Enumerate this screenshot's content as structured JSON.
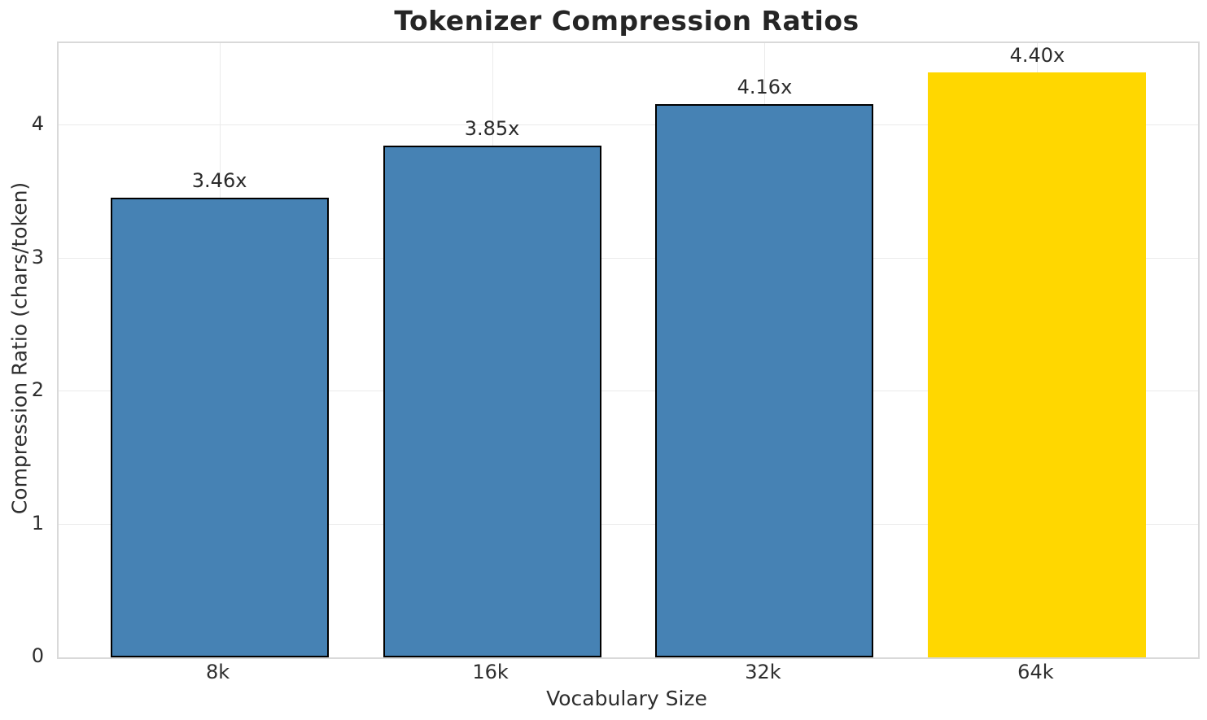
{
  "chart_data": {
    "type": "bar",
    "title": "Tokenizer Compression Ratios",
    "xlabel": "Vocabulary Size",
    "ylabel": "Compression Ratio (chars/token)",
    "categories": [
      "8k",
      "16k",
      "32k",
      "64k"
    ],
    "values": [
      3.46,
      3.85,
      4.16,
      4.4
    ],
    "bar_labels": [
      "3.46x",
      "3.85x",
      "4.16x",
      "4.40x"
    ],
    "yticks": [
      0,
      1,
      2,
      3,
      4
    ],
    "ylim": [
      0,
      4.62
    ],
    "xlim": [
      -0.59,
      3.59
    ],
    "bar_width": 0.8,
    "grid": true,
    "legend": "none",
    "bar_colors": [
      "#4682B4",
      "#4682B4",
      "#4682B4",
      "#FFD700"
    ],
    "bar_edge_colors": [
      "#000000",
      "#000000",
      "#000000",
      "none"
    ],
    "highlight_index": 3
  },
  "colors": {
    "bar_default": "#4682B4",
    "bar_highlight": "#FFD700",
    "bar_edge": "#000000",
    "grid_line": "#ebebeb",
    "spine": "#d9d9d9",
    "text": "#262626",
    "background": "#ffffff"
  }
}
